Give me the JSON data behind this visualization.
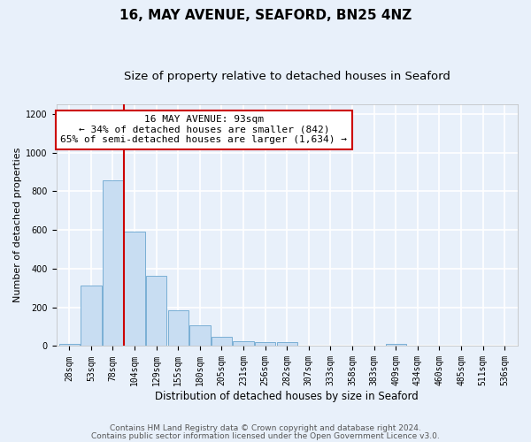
{
  "title": "16, MAY AVENUE, SEAFORD, BN25 4NZ",
  "subtitle": "Size of property relative to detached houses in Seaford",
  "xlabel": "Distribution of detached houses by size in Seaford",
  "ylabel": "Number of detached properties",
  "bar_labels": [
    "28sqm",
    "53sqm",
    "78sqm",
    "104sqm",
    "129sqm",
    "155sqm",
    "180sqm",
    "205sqm",
    "231sqm",
    "256sqm",
    "282sqm",
    "307sqm",
    "333sqm",
    "358sqm",
    "383sqm",
    "409sqm",
    "434sqm",
    "460sqm",
    "485sqm",
    "511sqm",
    "536sqm"
  ],
  "bar_values": [
    10,
    315,
    855,
    590,
    365,
    185,
    105,
    47,
    25,
    20,
    20,
    0,
    0,
    0,
    0,
    10,
    0,
    0,
    0,
    0,
    0
  ],
  "bar_color": "#c8ddf2",
  "bar_edgecolor": "#7aafd4",
  "background_color": "#e8f0fa",
  "grid_color": "#ffffff",
  "annotation_line_color": "#cc0000",
  "annotation_box_line1": "16 MAY AVENUE: 93sqm",
  "annotation_box_line2": "← 34% of detached houses are smaller (842)",
  "annotation_box_line3": "65% of semi-detached houses are larger (1,634) →",
  "annotation_box_facecolor": "#ffffff",
  "annotation_box_edgecolor": "#cc0000",
  "ylim": [
    0,
    1250
  ],
  "yticks": [
    0,
    200,
    400,
    600,
    800,
    1000,
    1200
  ],
  "footnote1": "Contains HM Land Registry data © Crown copyright and database right 2024.",
  "footnote2": "Contains public sector information licensed under the Open Government Licence v3.0.",
  "title_fontsize": 11,
  "subtitle_fontsize": 9.5,
  "xlabel_fontsize": 8.5,
  "ylabel_fontsize": 8,
  "tick_fontsize": 7,
  "annot_fontsize": 8,
  "footnote_fontsize": 6.5
}
